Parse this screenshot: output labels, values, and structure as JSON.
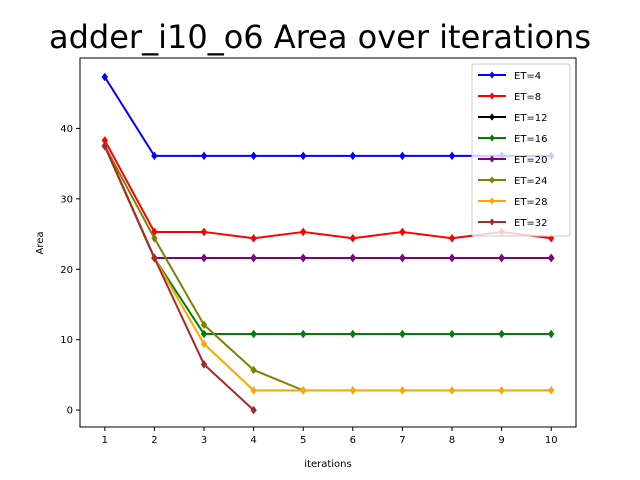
{
  "chart_data": {
    "type": "line",
    "title": "adder_i10_o6 Area over iterations",
    "xlabel": "iterations",
    "ylabel": "Area",
    "xlim": [
      0.5,
      10.5
    ],
    "ylim": [
      -2.4,
      50.0
    ],
    "xticks": [
      1,
      2,
      3,
      4,
      5,
      6,
      7,
      8,
      9,
      10
    ],
    "yticks": [
      0,
      10,
      20,
      30,
      40
    ],
    "grid": false,
    "legend_position": "upper-right",
    "series": [
      {
        "name": "ET=4",
        "color": "#0000ff",
        "x": [
          1,
          2,
          3,
          4,
          5,
          6,
          7,
          8,
          9,
          10
        ],
        "values": [
          47.3,
          36.1,
          36.1,
          36.1,
          36.1,
          36.1,
          36.1,
          36.1,
          36.1,
          36.1
        ]
      },
      {
        "name": "ET=8",
        "color": "#ff0000",
        "x": [
          1,
          2,
          3,
          4,
          5,
          6,
          7,
          8,
          9,
          10
        ],
        "values": [
          38.3,
          25.3,
          25.3,
          24.4,
          25.3,
          24.4,
          25.3,
          24.4,
          25.3,
          24.4
        ]
      },
      {
        "name": "ET=12",
        "color": "#000000",
        "x": [
          1,
          2,
          3,
          4,
          5,
          6,
          7,
          8,
          9,
          10
        ],
        "values": [
          37.5,
          21.6,
          21.6,
          21.6,
          21.6,
          21.6,
          21.6,
          21.6,
          21.6,
          21.6
        ]
      },
      {
        "name": "ET=16",
        "color": "#008000",
        "x": [
          1,
          2,
          3,
          4,
          5,
          6,
          7,
          8,
          9,
          10
        ],
        "values": [
          37.5,
          21.6,
          10.8,
          10.8,
          10.8,
          10.8,
          10.8,
          10.8,
          10.8,
          10.8
        ]
      },
      {
        "name": "ET=20",
        "color": "#800080",
        "x": [
          1,
          2,
          3,
          4,
          5,
          6,
          7,
          8,
          9,
          10
        ],
        "values": [
          37.5,
          21.6,
          21.6,
          21.6,
          21.6,
          21.6,
          21.6,
          21.6,
          21.6,
          21.6
        ]
      },
      {
        "name": "ET=24",
        "color": "#808000",
        "x": [
          1,
          2,
          3,
          4,
          5
        ],
        "values": [
          37.5,
          24.4,
          12.1,
          5.7,
          2.8
        ]
      },
      {
        "name": "ET=28",
        "color": "#ffa500",
        "x": [
          1,
          2,
          3,
          4,
          5,
          6,
          7,
          8,
          9,
          10
        ],
        "values": [
          37.5,
          21.6,
          9.4,
          2.8,
          2.8,
          2.8,
          2.8,
          2.8,
          2.8,
          2.8
        ]
      },
      {
        "name": "ET=32",
        "color": "#a52a2a",
        "x": [
          1,
          2,
          3,
          4
        ],
        "values": [
          37.5,
          21.6,
          6.5,
          0.0
        ]
      }
    ]
  }
}
